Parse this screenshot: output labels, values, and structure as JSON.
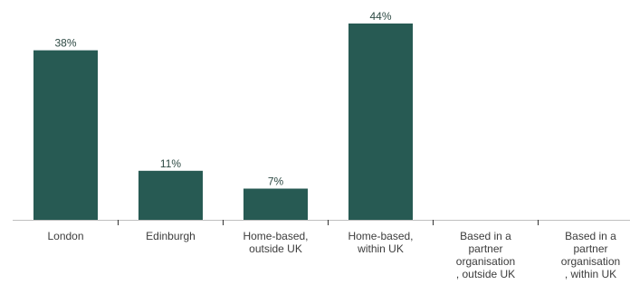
{
  "chart_data": {
    "type": "bar",
    "categories": [
      [
        "London"
      ],
      [
        "Edinburgh"
      ],
      [
        "Home-based,",
        "outside UK"
      ],
      [
        "Home-based,",
        "within UK"
      ],
      [
        "Based in a",
        "partner",
        "organisation",
        ", outside UK"
      ],
      [
        "Based in a",
        "partner",
        "organisation",
        ", within UK"
      ]
    ],
    "values": [
      38,
      11,
      7,
      44,
      0,
      0
    ],
    "data_labels": [
      "38%",
      "11%",
      "7%",
      "44%",
      "",
      ""
    ],
    "ylim": [
      0,
      44
    ],
    "grid": false,
    "bar_color": "#275a53",
    "axis_color": "#bfbfbf",
    "tick_color": "#333333"
  }
}
